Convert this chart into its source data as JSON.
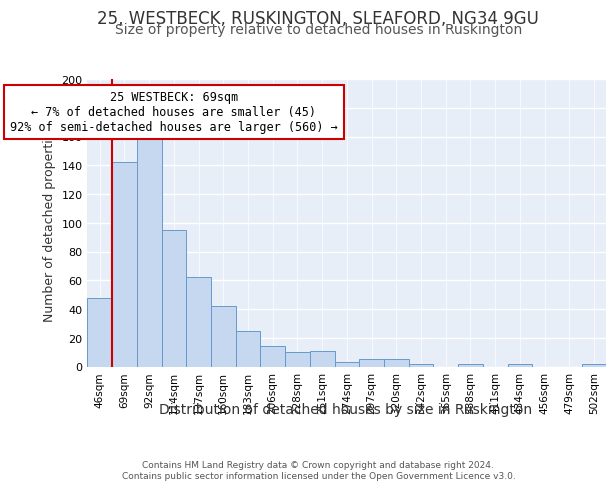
{
  "title1": "25, WESTBECK, RUSKINGTON, SLEAFORD, NG34 9GU",
  "title2": "Size of property relative to detached houses in Ruskington",
  "xlabel": "Distribution of detached houses by size in Ruskington",
  "ylabel": "Number of detached properties",
  "categories": [
    "46sqm",
    "69sqm",
    "92sqm",
    "114sqm",
    "137sqm",
    "160sqm",
    "183sqm",
    "206sqm",
    "228sqm",
    "251sqm",
    "274sqm",
    "297sqm",
    "320sqm",
    "342sqm",
    "365sqm",
    "388sqm",
    "411sqm",
    "434sqm",
    "456sqm",
    "479sqm",
    "502sqm"
  ],
  "values": [
    48,
    142,
    163,
    95,
    62,
    42,
    25,
    14,
    10,
    11,
    3,
    5,
    5,
    2,
    0,
    2,
    0,
    2,
    0,
    0,
    2
  ],
  "bar_color": "#c5d8f0",
  "bar_edge_color": "#6699cc",
  "highlight_index": 1,
  "highlight_color": "#cc0000",
  "annotation_box_text": "25 WESTBECK: 69sqm\n← 7% of detached houses are smaller (45)\n92% of semi-detached houses are larger (560) →",
  "annotation_box_color": "#cc0000",
  "annotation_box_bg": "#ffffff",
  "ylim": [
    0,
    200
  ],
  "yticks": [
    0,
    20,
    40,
    60,
    80,
    100,
    120,
    140,
    160,
    180,
    200
  ],
  "bg_color": "#e8eef8",
  "footer1": "Contains HM Land Registry data © Crown copyright and database right 2024.",
  "footer2": "Contains public sector information licensed under the Open Government Licence v3.0.",
  "title1_fontsize": 12,
  "title2_fontsize": 10,
  "xlabel_fontsize": 10,
  "ylabel_fontsize": 9,
  "annot_fontsize": 8.5
}
